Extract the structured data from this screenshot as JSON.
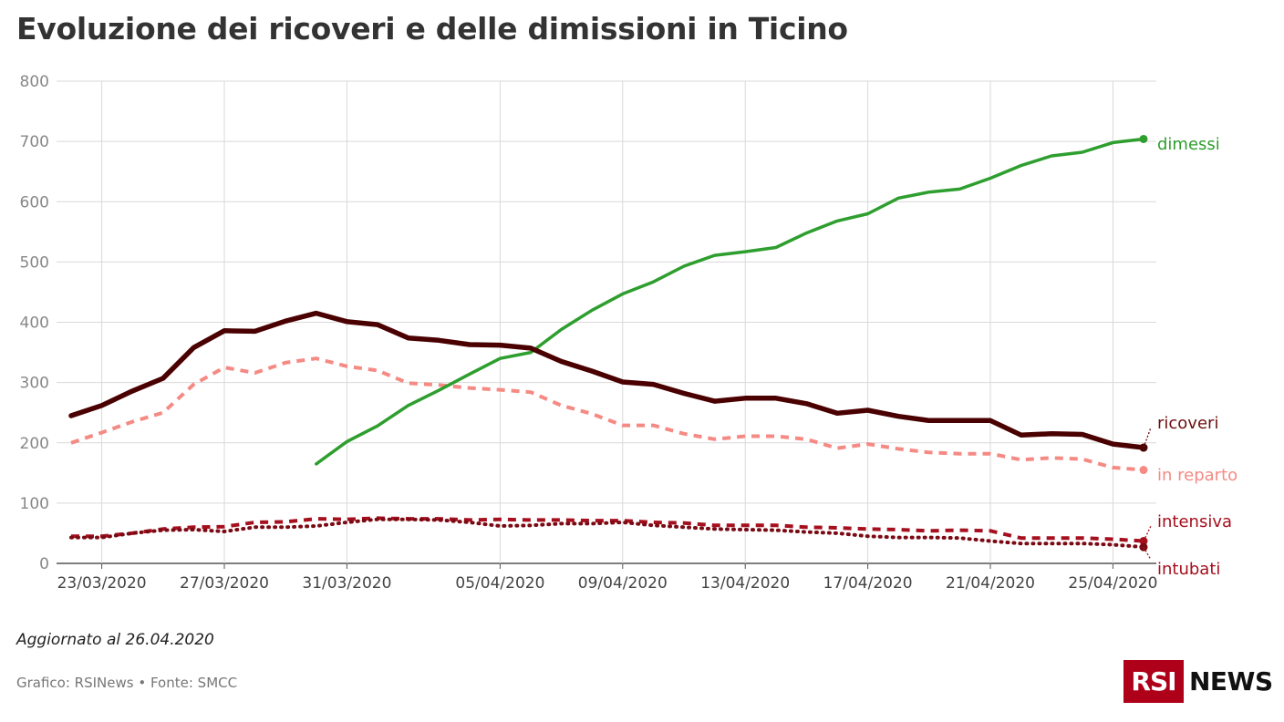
{
  "title": "Evoluzione dei ricoveri e delle dimissioni in Ticino",
  "updated": "Aggiornato al 26.04.2020",
  "source": "Grafico: RSINews • Fonte: SMCC",
  "logo": {
    "box_text": "RSI",
    "news_text": "NEWS",
    "brand_color": "#af0019"
  },
  "chart_data": {
    "type": "line",
    "x": [
      "22/03/2020",
      "23/03/2020",
      "24/03/2020",
      "25/03/2020",
      "26/03/2020",
      "27/03/2020",
      "28/03/2020",
      "29/03/2020",
      "30/03/2020",
      "31/03/2020",
      "01/04/2020",
      "02/04/2020",
      "03/04/2020",
      "04/04/2020",
      "05/04/2020",
      "06/04/2020",
      "07/04/2020",
      "08/04/2020",
      "09/04/2020",
      "10/04/2020",
      "11/04/2020",
      "12/04/2020",
      "13/04/2020",
      "14/04/2020",
      "15/04/2020",
      "16/04/2020",
      "17/04/2020",
      "18/04/2020",
      "19/04/2020",
      "20/04/2020",
      "21/04/2020",
      "22/04/2020",
      "23/04/2020",
      "24/04/2020",
      "25/04/2020",
      "26/04/2020"
    ],
    "x_ticks": [
      "23/03/2020",
      "27/03/2020",
      "31/03/2020",
      "05/04/2020",
      "09/04/2020",
      "13/04/2020",
      "17/04/2020",
      "21/04/2020",
      "25/04/2020"
    ],
    "ylim": [
      0,
      800
    ],
    "y_ticks": [
      0,
      100,
      200,
      300,
      400,
      500,
      600,
      700,
      800
    ],
    "grid": true,
    "series": [
      {
        "name": "dimessi",
        "color": "#2e9e2e",
        "style": "solid",
        "label_color": "#2e9e2e",
        "values": [
          null,
          null,
          null,
          null,
          null,
          null,
          null,
          null,
          165,
          202,
          228,
          262,
          287,
          314,
          340,
          350,
          388,
          420,
          447,
          467,
          493,
          511,
          517,
          524,
          548,
          568,
          580,
          606,
          616,
          621,
          639,
          660,
          676,
          682,
          698,
          704
        ]
      },
      {
        "name": "ricoveri",
        "color": "#4a0000",
        "style": "solid-thick",
        "label_color": "#6b0f0f",
        "values": [
          245,
          262,
          286,
          307,
          358,
          386,
          385,
          402,
          415,
          401,
          396,
          374,
          370,
          363,
          362,
          357,
          335,
          319,
          301,
          297,
          282,
          269,
          274,
          274,
          265,
          249,
          254,
          244,
          237,
          237,
          237,
          213,
          215,
          214,
          198,
          192
        ]
      },
      {
        "name": "in reparto",
        "color": "#f58a84",
        "style": "dashed",
        "label_color": "#f58a84",
        "values": [
          200,
          217,
          235,
          250,
          297,
          325,
          316,
          333,
          340,
          327,
          320,
          299,
          296,
          291,
          288,
          284,
          262,
          248,
          229,
          229,
          215,
          206,
          211,
          211,
          206,
          191,
          198,
          190,
          184,
          182,
          182,
          172,
          175,
          173,
          159,
          155
        ]
      },
      {
        "name": "intensiva",
        "color": "#a50f1e",
        "style": "dashed",
        "label_color": "#a50f1e",
        "values": [
          45,
          45,
          50,
          57,
          60,
          61,
          68,
          69,
          74,
          73,
          75,
          74,
          74,
          72,
          73,
          72,
          72,
          71,
          71,
          68,
          67,
          63,
          63,
          63,
          60,
          59,
          57,
          56,
          54,
          55,
          54,
          42,
          42,
          42,
          40,
          37
        ]
      },
      {
        "name": "intubati",
        "color": "#7a0a14",
        "style": "dotted",
        "label_color": "#a50f1e",
        "values": [
          43,
          43,
          50,
          55,
          56,
          53,
          60,
          60,
          62,
          68,
          73,
          73,
          72,
          68,
          62,
          63,
          66,
          66,
          68,
          63,
          60,
          57,
          56,
          55,
          52,
          50,
          45,
          43,
          43,
          42,
          37,
          33,
          33,
          33,
          31,
          27
        ]
      }
    ]
  }
}
